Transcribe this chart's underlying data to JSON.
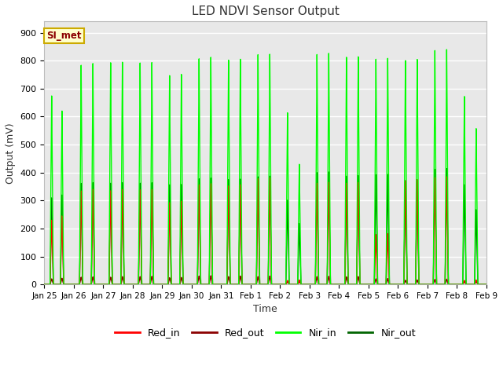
{
  "title": "LED NDVI Sensor Output",
  "xlabel": "Time",
  "ylabel": "Output (mV)",
  "ylim": [
    0,
    940
  ],
  "yticks": [
    0,
    100,
    200,
    300,
    400,
    500,
    600,
    700,
    800,
    900
  ],
  "plot_bg_color": "#e8e8e8",
  "grid_color": "#ffffff",
  "legend_label": "SI_met",
  "series": {
    "Red_in": {
      "color": "#ff0000",
      "lw": 1.0
    },
    "Red_out": {
      "color": "#8b0000",
      "lw": 1.0
    },
    "Nir_in": {
      "color": "#00ff00",
      "lw": 1.0
    },
    "Nir_out": {
      "color": "#006400",
      "lw": 1.0
    }
  },
  "x_tick_labels": [
    "Jan 25",
    "Jan 26",
    "Jan 27",
    "Jan 28",
    "Jan 29",
    "Jan 30",
    "Jan 31",
    "Feb 1",
    "Feb 2",
    "Feb 3",
    "Feb 4",
    "Feb 5",
    "Feb 6",
    "Feb 7",
    "Feb 8",
    "Feb 9"
  ],
  "num_days": 16,
  "spike_data": [
    {
      "day": 0.25,
      "red_in": 230,
      "red_out": 20,
      "nir_in": 675,
      "nir_out": 310
    },
    {
      "day": 0.6,
      "red_in": 245,
      "red_out": 22,
      "nir_in": 620,
      "nir_out": 320
    },
    {
      "day": 1.25,
      "red_in": 335,
      "red_out": 26,
      "nir_in": 785,
      "nir_out": 362
    },
    {
      "day": 1.65,
      "red_in": 340,
      "red_out": 27,
      "nir_in": 790,
      "nir_out": 364
    },
    {
      "day": 2.25,
      "red_in": 335,
      "red_out": 26,
      "nir_in": 793,
      "nir_out": 362
    },
    {
      "day": 2.65,
      "red_in": 340,
      "red_out": 28,
      "nir_in": 795,
      "nir_out": 364
    },
    {
      "day": 3.25,
      "red_in": 338,
      "red_out": 28,
      "nir_in": 792,
      "nir_out": 362
    },
    {
      "day": 3.65,
      "red_in": 340,
      "red_out": 29,
      "nir_in": 795,
      "nir_out": 364
    },
    {
      "day": 4.25,
      "red_in": 293,
      "red_out": 24,
      "nir_in": 748,
      "nir_out": 357
    },
    {
      "day": 4.65,
      "red_in": 298,
      "red_out": 25,
      "nir_in": 752,
      "nir_out": 358
    },
    {
      "day": 5.25,
      "red_in": 357,
      "red_out": 30,
      "nir_in": 808,
      "nir_out": 378
    },
    {
      "day": 5.65,
      "red_in": 360,
      "red_out": 31,
      "nir_in": 812,
      "nir_out": 380
    },
    {
      "day": 6.25,
      "red_in": 352,
      "red_out": 28,
      "nir_in": 802,
      "nir_out": 375
    },
    {
      "day": 6.65,
      "red_in": 357,
      "red_out": 30,
      "nir_in": 806,
      "nir_out": 377
    },
    {
      "day": 7.25,
      "red_in": 378,
      "red_out": 28,
      "nir_in": 822,
      "nir_out": 385
    },
    {
      "day": 7.65,
      "red_in": 382,
      "red_out": 30,
      "nir_in": 825,
      "nir_out": 388
    },
    {
      "day": 8.25,
      "red_in": 14,
      "red_out": 11,
      "nir_in": 615,
      "nir_out": 302
    },
    {
      "day": 8.65,
      "red_in": 16,
      "red_out": 12,
      "nir_in": 430,
      "nir_out": 218
    },
    {
      "day": 9.25,
      "red_in": 362,
      "red_out": 28,
      "nir_in": 823,
      "nir_out": 400
    },
    {
      "day": 9.65,
      "red_in": 365,
      "red_out": 29,
      "nir_in": 826,
      "nir_out": 402
    },
    {
      "day": 10.25,
      "red_in": 362,
      "red_out": 27,
      "nir_in": 812,
      "nir_out": 387
    },
    {
      "day": 10.65,
      "red_in": 365,
      "red_out": 28,
      "nir_in": 815,
      "nir_out": 390
    },
    {
      "day": 11.25,
      "red_in": 178,
      "red_out": 20,
      "nir_in": 806,
      "nir_out": 392
    },
    {
      "day": 11.65,
      "red_in": 182,
      "red_out": 21,
      "nir_in": 810,
      "nir_out": 394
    },
    {
      "day": 12.25,
      "red_in": 372,
      "red_out": 15,
      "nir_in": 802,
      "nir_out": 372
    },
    {
      "day": 12.65,
      "red_in": 375,
      "red_out": 16,
      "nir_in": 805,
      "nir_out": 374
    },
    {
      "day": 13.25,
      "red_in": 382,
      "red_out": 18,
      "nir_in": 837,
      "nir_out": 412
    },
    {
      "day": 13.65,
      "red_in": 385,
      "red_out": 19,
      "nir_in": 840,
      "nir_out": 414
    },
    {
      "day": 14.25,
      "red_in": 14,
      "red_out": 11,
      "nir_in": 672,
      "nir_out": 357
    },
    {
      "day": 14.65,
      "red_in": 16,
      "red_out": 12,
      "nir_in": 558,
      "nir_out": 268
    }
  ]
}
